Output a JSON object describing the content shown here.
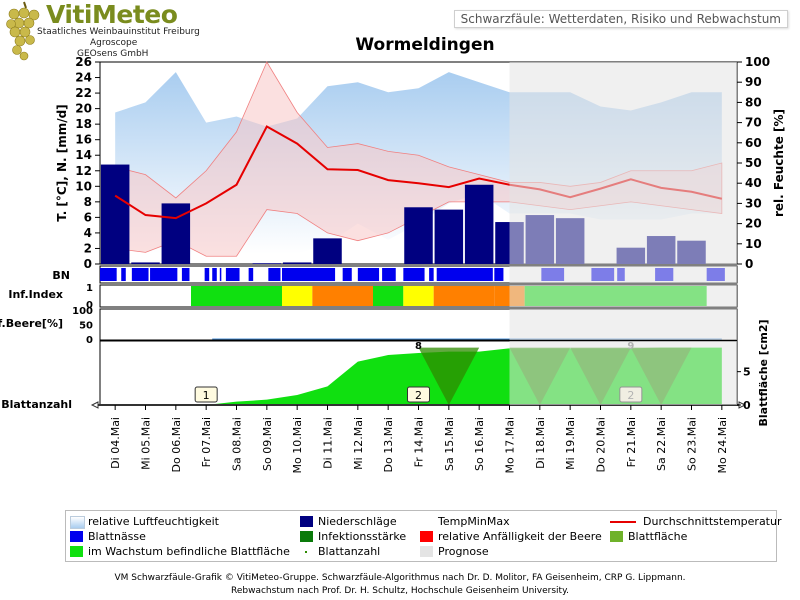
{
  "header": {
    "logo_title": "VitiMeteo",
    "logo_lines": [
      "Staatliches Weinbauinstitut Freiburg",
      "Agroscope",
      "GEOsens GmbH"
    ],
    "subtitle": "Schwarzfäule: Wetterdaten, Risiko und Rebwachstum"
  },
  "colors": {
    "humidity": "#a9cdf0",
    "temp_band": "#f7c7c7",
    "temp_mean": "#e60000",
    "precip": "#000080",
    "wetness": "#0000ee",
    "forecast": "#e4e4e4",
    "leaf_growing": "#10e010",
    "leaf_infect": "#2e8b00",
    "idx_green": "#10e010",
    "idx_yellow": "#ffff00",
    "idx_orange": "#ff8000"
  },
  "chart_data": {
    "type": "line",
    "title": "Wormeldingen",
    "x_categories": [
      "Di 04.Mai",
      "Mi 05.Mai",
      "Do 06.Mai",
      "Fr 07.Mai",
      "Sa 08.Mai",
      "So 09.Mai",
      "Mo 10.Mai",
      "Di 11.Mai",
      "Mi 12.Mai",
      "Do 13.Mai",
      "Fr 14.Mai",
      "Sa 15.Mai",
      "So 16.Mai",
      "Mo 17.Mai",
      "Di 18.Mai",
      "Mi 19.Mai",
      "Do 20.Mai",
      "Fr 21.Mai",
      "Sa 22.Mai",
      "So 23.Mai",
      "Mo 24.Mai"
    ],
    "forecast_start": "Mo 17.Mai",
    "left_axis": {
      "label": "T. [°C], N. [mm/d]",
      "range": [
        0,
        26
      ],
      "ticks": [
        0,
        2,
        4,
        6,
        8,
        10,
        12,
        14,
        16,
        18,
        20,
        22,
        24,
        26
      ]
    },
    "right_axis": {
      "label": "rel. Feuchte [%]",
      "range": [
        0,
        100
      ],
      "ticks": [
        0,
        10,
        20,
        30,
        40,
        50,
        60,
        70,
        80,
        90,
        100
      ]
    },
    "series": [
      {
        "name": "relative Luftfeuchtigkeit",
        "type": "area",
        "axis": "right",
        "x": [
          "Di 04.Mai",
          "Mi 05.Mai",
          "Do 06.Mai",
          "Fr 07.Mai",
          "Sa 08.Mai",
          "So 09.Mai",
          "Mo 10.Mai",
          "Di 11.Mai",
          "Mi 12.Mai",
          "Do 13.Mai",
          "Fr 14.Mai",
          "Sa 15.Mai",
          "So 16.Mai",
          "Mo 17.Mai",
          "Di 18.Mai",
          "Mi 19.Mai",
          "Do 20.Mai",
          "Fr 21.Mai",
          "Sa 22.Mai",
          "So 23.Mai",
          "Mo 24.Mai"
        ],
        "upper": [
          75,
          80,
          95,
          70,
          73,
          68,
          72,
          88,
          90,
          85,
          87,
          95,
          90,
          85,
          85,
          85,
          78,
          76,
          80,
          85,
          85
        ],
        "lower": [
          10,
          5,
          5,
          5,
          5,
          5,
          5,
          10,
          20,
          12,
          20,
          30,
          35,
          25,
          25,
          25,
          22,
          22,
          22,
          25,
          25
        ]
      },
      {
        "name": "TempMinMax",
        "type": "band",
        "axis": "left",
        "x": [
          "Di 04.Mai",
          "Mi 05.Mai",
          "Do 06.Mai",
          "Fr 07.Mai",
          "Sa 08.Mai",
          "So 09.Mai",
          "Mo 10.Mai",
          "Di 11.Mai",
          "Mi 12.Mai",
          "Do 13.Mai",
          "Fr 14.Mai",
          "Sa 15.Mai",
          "So 16.Mai",
          "Mo 17.Mai",
          "Di 18.Mai",
          "Mi 19.Mai",
          "Do 20.Mai",
          "Fr 21.Mai",
          "Sa 22.Mai",
          "So 23.Mai",
          "Mo 24.Mai"
        ],
        "max": [
          12.5,
          11.5,
          8.5,
          12,
          17,
          26,
          19.5,
          15,
          15.5,
          14.5,
          14,
          12.5,
          11.5,
          10.5,
          10.5,
          10,
          10.5,
          12,
          12,
          12,
          13
        ],
        "min": [
          2,
          1.5,
          3,
          1,
          1,
          7,
          6.5,
          4,
          3,
          4,
          6,
          8,
          8,
          8,
          7.5,
          7,
          7.5,
          8,
          7.5,
          7,
          6.5
        ]
      },
      {
        "name": "Durchschnittstemperatur",
        "type": "line",
        "axis": "left",
        "x": [
          "Di 04.Mai",
          "Mi 05.Mai",
          "Do 06.Mai",
          "Fr 07.Mai",
          "Sa 08.Mai",
          "So 09.Mai",
          "Mo 10.Mai",
          "Di 11.Mai",
          "Mi 12.Mai",
          "Do 13.Mai",
          "Fr 14.Mai",
          "Sa 15.Mai",
          "So 16.Mai",
          "Mo 17.Mai",
          "Di 18.Mai",
          "Mi 19.Mai",
          "Do 20.Mai",
          "Fr 21.Mai",
          "Sa 22.Mai",
          "So 23.Mai",
          "Mo 24.Mai"
        ],
        "values": [
          8.8,
          6.3,
          5.9,
          7.8,
          10.2,
          17.7,
          15.5,
          12.2,
          12.1,
          10.8,
          10.4,
          9.9,
          11.0,
          10.2,
          9.6,
          8.6,
          9.7,
          10.9,
          9.8,
          9.3,
          8.4
        ]
      },
      {
        "name": "Niederschläge",
        "type": "bar",
        "axis": "left",
        "x": [
          "Di 04.Mai",
          "Mi 05.Mai",
          "Do 06.Mai",
          "Fr 07.Mai",
          "Sa 08.Mai",
          "So 09.Mai",
          "Mo 10.Mai",
          "Di 11.Mai",
          "Mi 12.Mai",
          "Do 13.Mai",
          "Fr 14.Mai",
          "Sa 15.Mai",
          "So 16.Mai",
          "Mo 17.Mai",
          "Di 18.Mai",
          "Mi 19.Mai",
          "Do 20.Mai",
          "Fr 21.Mai",
          "Sa 22.Mai",
          "So 23.Mai",
          "Mo 24.Mai"
        ],
        "values": [
          12.8,
          0.2,
          7.8,
          0,
          0,
          0.1,
          0.2,
          3.3,
          0,
          0,
          7.3,
          7.0,
          10.2,
          5.4,
          6.3,
          5.9,
          0,
          2.1,
          3.6,
          3.0,
          0
        ]
      }
    ],
    "bn_hours": {
      "label": "BN",
      "legend": "Blattnässe",
      "segments": [
        [
          0,
          0.55
        ],
        [
          0.7,
          0.85
        ],
        [
          1.05,
          1.6
        ],
        [
          1.65,
          2.55
        ],
        [
          2.7,
          2.95
        ],
        [
          3.45,
          3.6
        ],
        [
          3.7,
          3.85
        ],
        [
          3.95,
          4.0
        ],
        [
          4.15,
          4.6
        ],
        [
          4.9,
          5.05
        ],
        [
          5.55,
          5.95
        ],
        [
          6.0,
          7.75
        ],
        [
          8.0,
          8.3
        ],
        [
          8.5,
          9.2
        ],
        [
          9.3,
          9.75
        ],
        [
          10.0,
          10.7
        ],
        [
          10.85,
          11.0
        ],
        [
          11.1,
          12.95
        ],
        [
          13.0,
          13.3
        ],
        [
          14.55,
          15.3
        ],
        [
          16.2,
          16.95
        ],
        [
          17.05,
          17.3
        ],
        [
          18.3,
          18.9
        ],
        [
          20.0,
          20.6
        ]
      ]
    },
    "infection_index": {
      "label": "Inf.Index",
      "ticks": [
        0,
        1
      ],
      "segments": [
        {
          "from": 3.0,
          "to": 6.0,
          "color": "green"
        },
        {
          "from": 6.0,
          "to": 7.0,
          "color": "yellow"
        },
        {
          "from": 7.0,
          "to": 9.0,
          "color": "orange"
        },
        {
          "from": 9.0,
          "to": 10.0,
          "color": "green"
        },
        {
          "from": 10.0,
          "to": 11.0,
          "color": "yellow"
        },
        {
          "from": 11.0,
          "to": 13.0,
          "color": "orange"
        },
        {
          "from": 13.0,
          "to": 14.0,
          "color": "orange"
        },
        {
          "from": 14.0,
          "to": 20.0,
          "color": "green"
        }
      ]
    },
    "infection_berry": {
      "label": "Inf.Beere[%]",
      "ticks": [
        0,
        50,
        100
      ],
      "values": [
        0,
        0,
        0,
        0,
        0,
        0,
        0,
        0,
        0,
        0,
        0,
        0,
        0,
        0,
        0,
        0,
        0,
        0,
        0,
        0,
        0
      ]
    },
    "leaf": {
      "label": "Blattanzahl",
      "right_label": "Blattfläche [cm2]",
      "right_ticks": [
        0,
        5
      ],
      "right_range": [
        0,
        9
      ],
      "area": [
        0,
        0,
        0,
        0,
        0.5,
        0.8,
        1.5,
        2.8,
        6.5,
        7.5,
        7.8,
        8,
        8,
        8.5,
        8.5,
        8.5,
        8.5,
        8.5,
        8.6,
        8.6,
        8.6
      ],
      "count_markers": [
        {
          "x": 3.5,
          "text": "1"
        },
        {
          "x": 10.5,
          "text": "2"
        },
        {
          "x": 17.5,
          "text": "2"
        }
      ],
      "top_labels": [
        {
          "x": 10.5,
          "text": "8"
        },
        {
          "x": 17.5,
          "text": "9"
        }
      ],
      "infect_triangles": [
        [
          10.5,
          11.5,
          12.5
        ],
        [
          13.5,
          14.5,
          15.5
        ],
        [
          15.5,
          16.5,
          17.5
        ],
        [
          17.5,
          18.5,
          19.5
        ]
      ]
    }
  },
  "legend": {
    "items": [
      {
        "label": "relative Luftfeuchtigkeit",
        "swatch": "humidity"
      },
      {
        "label": "Niederschläge",
        "swatch": "precip"
      },
      {
        "label": "TempMinMax",
        "swatch": "temp_band"
      },
      {
        "label": "Durchschnittstemperatur",
        "swatch": "temp_line"
      },
      {
        "label": "Blattnässe",
        "swatch": "wetness"
      },
      {
        "label": "Infektionsstärke",
        "swatch": "infect_dark"
      },
      {
        "label": "relative Anfälligkeit der Beere",
        "swatch": "berry_red"
      },
      {
        "label": "Blattfläche",
        "swatch": "leaf_area"
      },
      {
        "label": "im Wachstum befindliche Blattfläche",
        "swatch": "leaf_growing"
      },
      {
        "label": "Blattanzahl",
        "swatch": "dot"
      },
      {
        "label": "Prognose",
        "swatch": "forecast"
      }
    ]
  },
  "footer": {
    "line1": "VM Schwarzfäule-Grafik © VitiMeteo-Gruppe. Schwarzfäule-Algorithmus nach Dr. D. Molitor, FA Geisenheim, CRP G. Lippmann.",
    "line2": "Rebwachstum nach Prof. Dr. H. Schultz, Hochschule Geisenheim University."
  }
}
